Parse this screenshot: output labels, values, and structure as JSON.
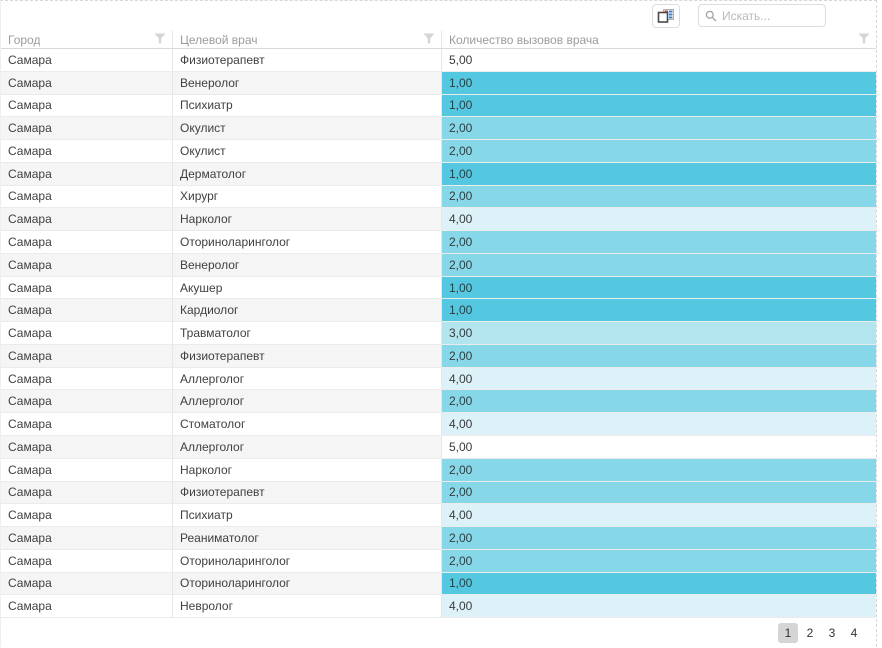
{
  "toolbar": {
    "column_chooser_icon": "column-chooser-icon",
    "search": {
      "placeholder": "Искать..."
    }
  },
  "grid": {
    "columns": [
      {
        "label": "Город"
      },
      {
        "label": "Целевой врач"
      },
      {
        "label": "Количество вызовов врача"
      }
    ],
    "heat_colors": {
      "1": "#53c8e0",
      "2": "#86d8e9",
      "3": "#b3e5ef",
      "4": "#dcf2f8",
      "5": "#ffffff"
    },
    "rows": [
      {
        "city": "Самара",
        "doctor": "Физиотерапевт",
        "calls": "5,00",
        "value": 5
      },
      {
        "city": "Самара",
        "doctor": "Венеролог",
        "calls": "1,00",
        "value": 1
      },
      {
        "city": "Самара",
        "doctor": "Психиатр",
        "calls": "1,00",
        "value": 1
      },
      {
        "city": "Самара",
        "doctor": "Окулист",
        "calls": "2,00",
        "value": 2
      },
      {
        "city": "Самара",
        "doctor": "Окулист",
        "calls": "2,00",
        "value": 2
      },
      {
        "city": "Самара",
        "doctor": "Дерматолог",
        "calls": "1,00",
        "value": 1
      },
      {
        "city": "Самара",
        "doctor": "Хирург",
        "calls": "2,00",
        "value": 2
      },
      {
        "city": "Самара",
        "doctor": "Нарколог",
        "calls": "4,00",
        "value": 4
      },
      {
        "city": "Самара",
        "doctor": "Оториноларинголог",
        "calls": "2,00",
        "value": 2
      },
      {
        "city": "Самара",
        "doctor": "Венеролог",
        "calls": "2,00",
        "value": 2
      },
      {
        "city": "Самара",
        "doctor": "Акушер",
        "calls": "1,00",
        "value": 1
      },
      {
        "city": "Самара",
        "doctor": "Кардиолог",
        "calls": "1,00",
        "value": 1
      },
      {
        "city": "Самара",
        "doctor": "Травматолог",
        "calls": "3,00",
        "value": 3
      },
      {
        "city": "Самара",
        "doctor": "Физиотерапевт",
        "calls": "2,00",
        "value": 2
      },
      {
        "city": "Самара",
        "doctor": "Аллерголог",
        "calls": "4,00",
        "value": 4
      },
      {
        "city": "Самара",
        "doctor": "Аллерголог",
        "calls": "2,00",
        "value": 2
      },
      {
        "city": "Самара",
        "doctor": "Стоматолог",
        "calls": "4,00",
        "value": 4
      },
      {
        "city": "Самара",
        "doctor": "Аллерголог",
        "calls": "5,00",
        "value": 5
      },
      {
        "city": "Самара",
        "doctor": "Нарколог",
        "calls": "2,00",
        "value": 2
      },
      {
        "city": "Самара",
        "doctor": "Физиотерапевт",
        "calls": "2,00",
        "value": 2
      },
      {
        "city": "Самара",
        "doctor": "Психиатр",
        "calls": "4,00",
        "value": 4
      },
      {
        "city": "Самара",
        "doctor": "Реаниматолог",
        "calls": "2,00",
        "value": 2
      },
      {
        "city": "Самара",
        "doctor": "Оториноларинголог",
        "calls": "2,00",
        "value": 2
      },
      {
        "city": "Самара",
        "doctor": "Оториноларинголог",
        "calls": "1,00",
        "value": 1
      },
      {
        "city": "Самара",
        "doctor": "Невролог",
        "calls": "4,00",
        "value": 4
      }
    ]
  },
  "pager": {
    "pages": [
      "1",
      "2",
      "3",
      "4"
    ],
    "current": "1"
  }
}
